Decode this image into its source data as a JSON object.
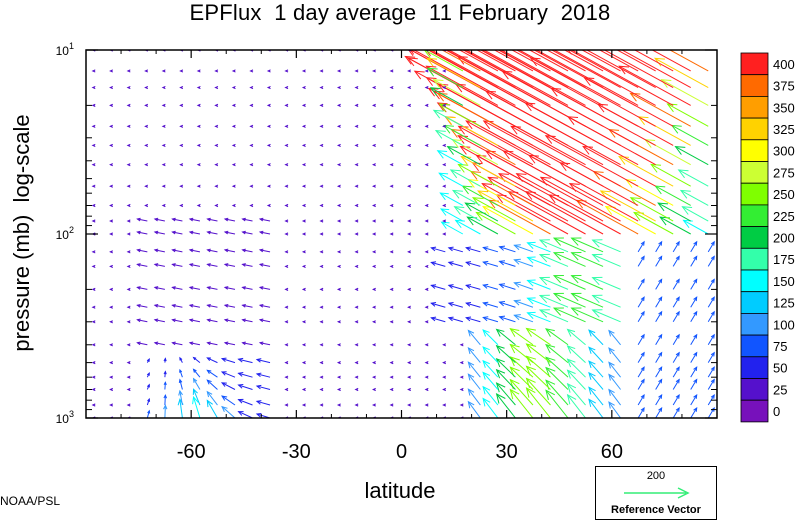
{
  "chart_data": {
    "type": "quiver",
    "title": "EPFlux  1 day average  11 February  2018",
    "xlabel": "latitude",
    "ylabel": "pressure (mb)  log-scale",
    "xlim": [
      -90,
      90
    ],
    "ylim_pressure_mb": [
      1000,
      10
    ],
    "y_scale": "log",
    "x_ticks": [
      {
        "value": -60,
        "label": "-60"
      },
      {
        "value": -30,
        "label": "-30"
      },
      {
        "value": 0,
        "label": "0"
      },
      {
        "value": 30,
        "label": "30"
      },
      {
        "value": 60,
        "label": "60"
      }
    ],
    "y_ticks": [
      {
        "value": 10,
        "base": "10",
        "exp": "1"
      },
      {
        "value": 100,
        "base": "10",
        "exp": "2"
      },
      {
        "value": 1000,
        "base": "10",
        "exp": "3"
      }
    ],
    "colorbar": {
      "levels": [
        "400",
        "375",
        "350",
        "325",
        "300",
        "275",
        "250",
        "225",
        "200",
        "175",
        "150",
        "125",
        "100",
        "75",
        "50",
        "25",
        "0"
      ],
      "colors": [
        "#ff2020",
        "#ff6a00",
        "#ff9e00",
        "#ffd200",
        "#ffff00",
        "#ccff33",
        "#7fff00",
        "#33ee33",
        "#00cc44",
        "#33ffaa",
        "#00ffff",
        "#00ccff",
        "#3399ff",
        "#1155ff",
        "#2222ee",
        "#5511cc",
        "#7711bb"
      ]
    },
    "reference_vector": {
      "magnitude": "200",
      "label": "Reference Vector",
      "color": "#33ee77"
    },
    "credit": "NOAA/PSL"
  }
}
